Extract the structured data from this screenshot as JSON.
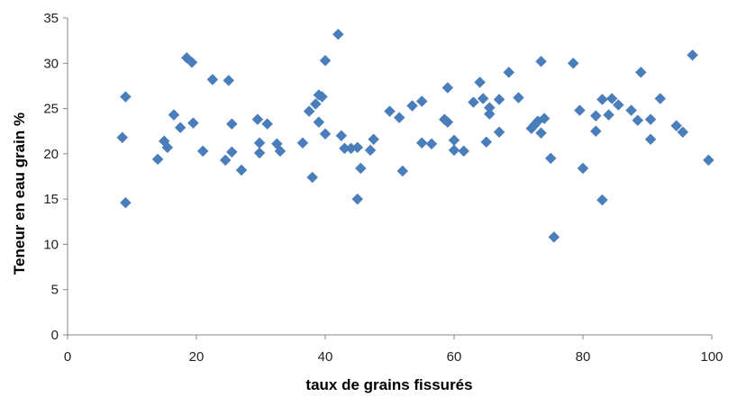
{
  "chart_data": {
    "type": "scatter",
    "title": "",
    "xlabel": "taux de grains fissurés",
    "ylabel": "Teneur en eau grain  %",
    "xlim": [
      0,
      100
    ],
    "ylim": [
      0,
      35
    ],
    "x_ticks": [
      0,
      20,
      40,
      60,
      80,
      100
    ],
    "y_ticks": [
      0,
      5,
      10,
      15,
      20,
      25,
      30,
      35
    ],
    "grid": false,
    "legend": "none",
    "marker": "diamond",
    "marker_color": "#4a7ebb",
    "points": [
      {
        "x": 8.5,
        "y": 21.8
      },
      {
        "x": 9.0,
        "y": 26.3
      },
      {
        "x": 9.0,
        "y": 14.6
      },
      {
        "x": 14.0,
        "y": 19.4
      },
      {
        "x": 15.0,
        "y": 21.4
      },
      {
        "x": 15.5,
        "y": 20.7
      },
      {
        "x": 16.5,
        "y": 24.3
      },
      {
        "x": 17.5,
        "y": 22.9
      },
      {
        "x": 18.5,
        "y": 30.6
      },
      {
        "x": 19.3,
        "y": 30.1
      },
      {
        "x": 19.5,
        "y": 23.4
      },
      {
        "x": 21.0,
        "y": 20.3
      },
      {
        "x": 22.5,
        "y": 28.2
      },
      {
        "x": 24.5,
        "y": 19.3
      },
      {
        "x": 25.0,
        "y": 28.1
      },
      {
        "x": 25.5,
        "y": 23.3
      },
      {
        "x": 25.5,
        "y": 20.2
      },
      {
        "x": 27.0,
        "y": 18.2
      },
      {
        "x": 29.5,
        "y": 23.8
      },
      {
        "x": 29.8,
        "y": 21.2
      },
      {
        "x": 29.8,
        "y": 20.1
      },
      {
        "x": 31.0,
        "y": 23.3
      },
      {
        "x": 32.5,
        "y": 21.1
      },
      {
        "x": 33.0,
        "y": 20.3
      },
      {
        "x": 36.5,
        "y": 21.2
      },
      {
        "x": 37.5,
        "y": 24.7
      },
      {
        "x": 38.0,
        "y": 17.4
      },
      {
        "x": 38.5,
        "y": 25.5
      },
      {
        "x": 39.0,
        "y": 26.5
      },
      {
        "x": 39.5,
        "y": 26.3
      },
      {
        "x": 39.0,
        "y": 23.5
      },
      {
        "x": 40.0,
        "y": 22.2
      },
      {
        "x": 40.0,
        "y": 30.3
      },
      {
        "x": 42.0,
        "y": 33.2
      },
      {
        "x": 42.5,
        "y": 22.0
      },
      {
        "x": 43.0,
        "y": 20.6
      },
      {
        "x": 44.0,
        "y": 20.6
      },
      {
        "x": 45.0,
        "y": 20.7
      },
      {
        "x": 45.5,
        "y": 18.4
      },
      {
        "x": 45.0,
        "y": 15.0
      },
      {
        "x": 47.0,
        "y": 20.4
      },
      {
        "x": 47.5,
        "y": 21.6
      },
      {
        "x": 50.0,
        "y": 24.7
      },
      {
        "x": 51.5,
        "y": 24.0
      },
      {
        "x": 52.0,
        "y": 18.1
      },
      {
        "x": 53.5,
        "y": 25.3
      },
      {
        "x": 55.0,
        "y": 25.8
      },
      {
        "x": 55.0,
        "y": 21.2
      },
      {
        "x": 56.5,
        "y": 21.1
      },
      {
        "x": 58.5,
        "y": 23.8
      },
      {
        "x": 59.0,
        "y": 27.3
      },
      {
        "x": 59.0,
        "y": 23.5
      },
      {
        "x": 60.0,
        "y": 21.5
      },
      {
        "x": 60.0,
        "y": 20.4
      },
      {
        "x": 61.5,
        "y": 20.3
      },
      {
        "x": 63.0,
        "y": 25.7
      },
      {
        "x": 64.0,
        "y": 27.9
      },
      {
        "x": 64.5,
        "y": 26.1
      },
      {
        "x": 65.0,
        "y": 21.3
      },
      {
        "x": 65.5,
        "y": 25.1
      },
      {
        "x": 65.5,
        "y": 24.4
      },
      {
        "x": 67.0,
        "y": 22.4
      },
      {
        "x": 67.0,
        "y": 26.0
      },
      {
        "x": 68.5,
        "y": 29.0
      },
      {
        "x": 70.0,
        "y": 26.2
      },
      {
        "x": 72.0,
        "y": 22.8
      },
      {
        "x": 72.5,
        "y": 23.2
      },
      {
        "x": 73.0,
        "y": 23.6
      },
      {
        "x": 73.5,
        "y": 22.3
      },
      {
        "x": 73.5,
        "y": 30.2
      },
      {
        "x": 74.0,
        "y": 23.9
      },
      {
        "x": 75.0,
        "y": 19.5
      },
      {
        "x": 75.5,
        "y": 10.8
      },
      {
        "x": 78.5,
        "y": 30.0
      },
      {
        "x": 79.5,
        "y": 24.8
      },
      {
        "x": 80.0,
        "y": 18.4
      },
      {
        "x": 82.0,
        "y": 24.2
      },
      {
        "x": 82.0,
        "y": 22.5
      },
      {
        "x": 83.0,
        "y": 26.0
      },
      {
        "x": 83.0,
        "y": 14.9
      },
      {
        "x": 84.0,
        "y": 24.3
      },
      {
        "x": 84.5,
        "y": 26.1
      },
      {
        "x": 85.5,
        "y": 25.4
      },
      {
        "x": 87.5,
        "y": 24.8
      },
      {
        "x": 88.5,
        "y": 23.7
      },
      {
        "x": 89.0,
        "y": 29.0
      },
      {
        "x": 90.5,
        "y": 23.8
      },
      {
        "x": 90.5,
        "y": 21.6
      },
      {
        "x": 92.0,
        "y": 26.1
      },
      {
        "x": 94.5,
        "y": 23.1
      },
      {
        "x": 95.5,
        "y": 22.4
      },
      {
        "x": 97.0,
        "y": 30.9
      },
      {
        "x": 99.5,
        "y": 19.3
      }
    ]
  }
}
